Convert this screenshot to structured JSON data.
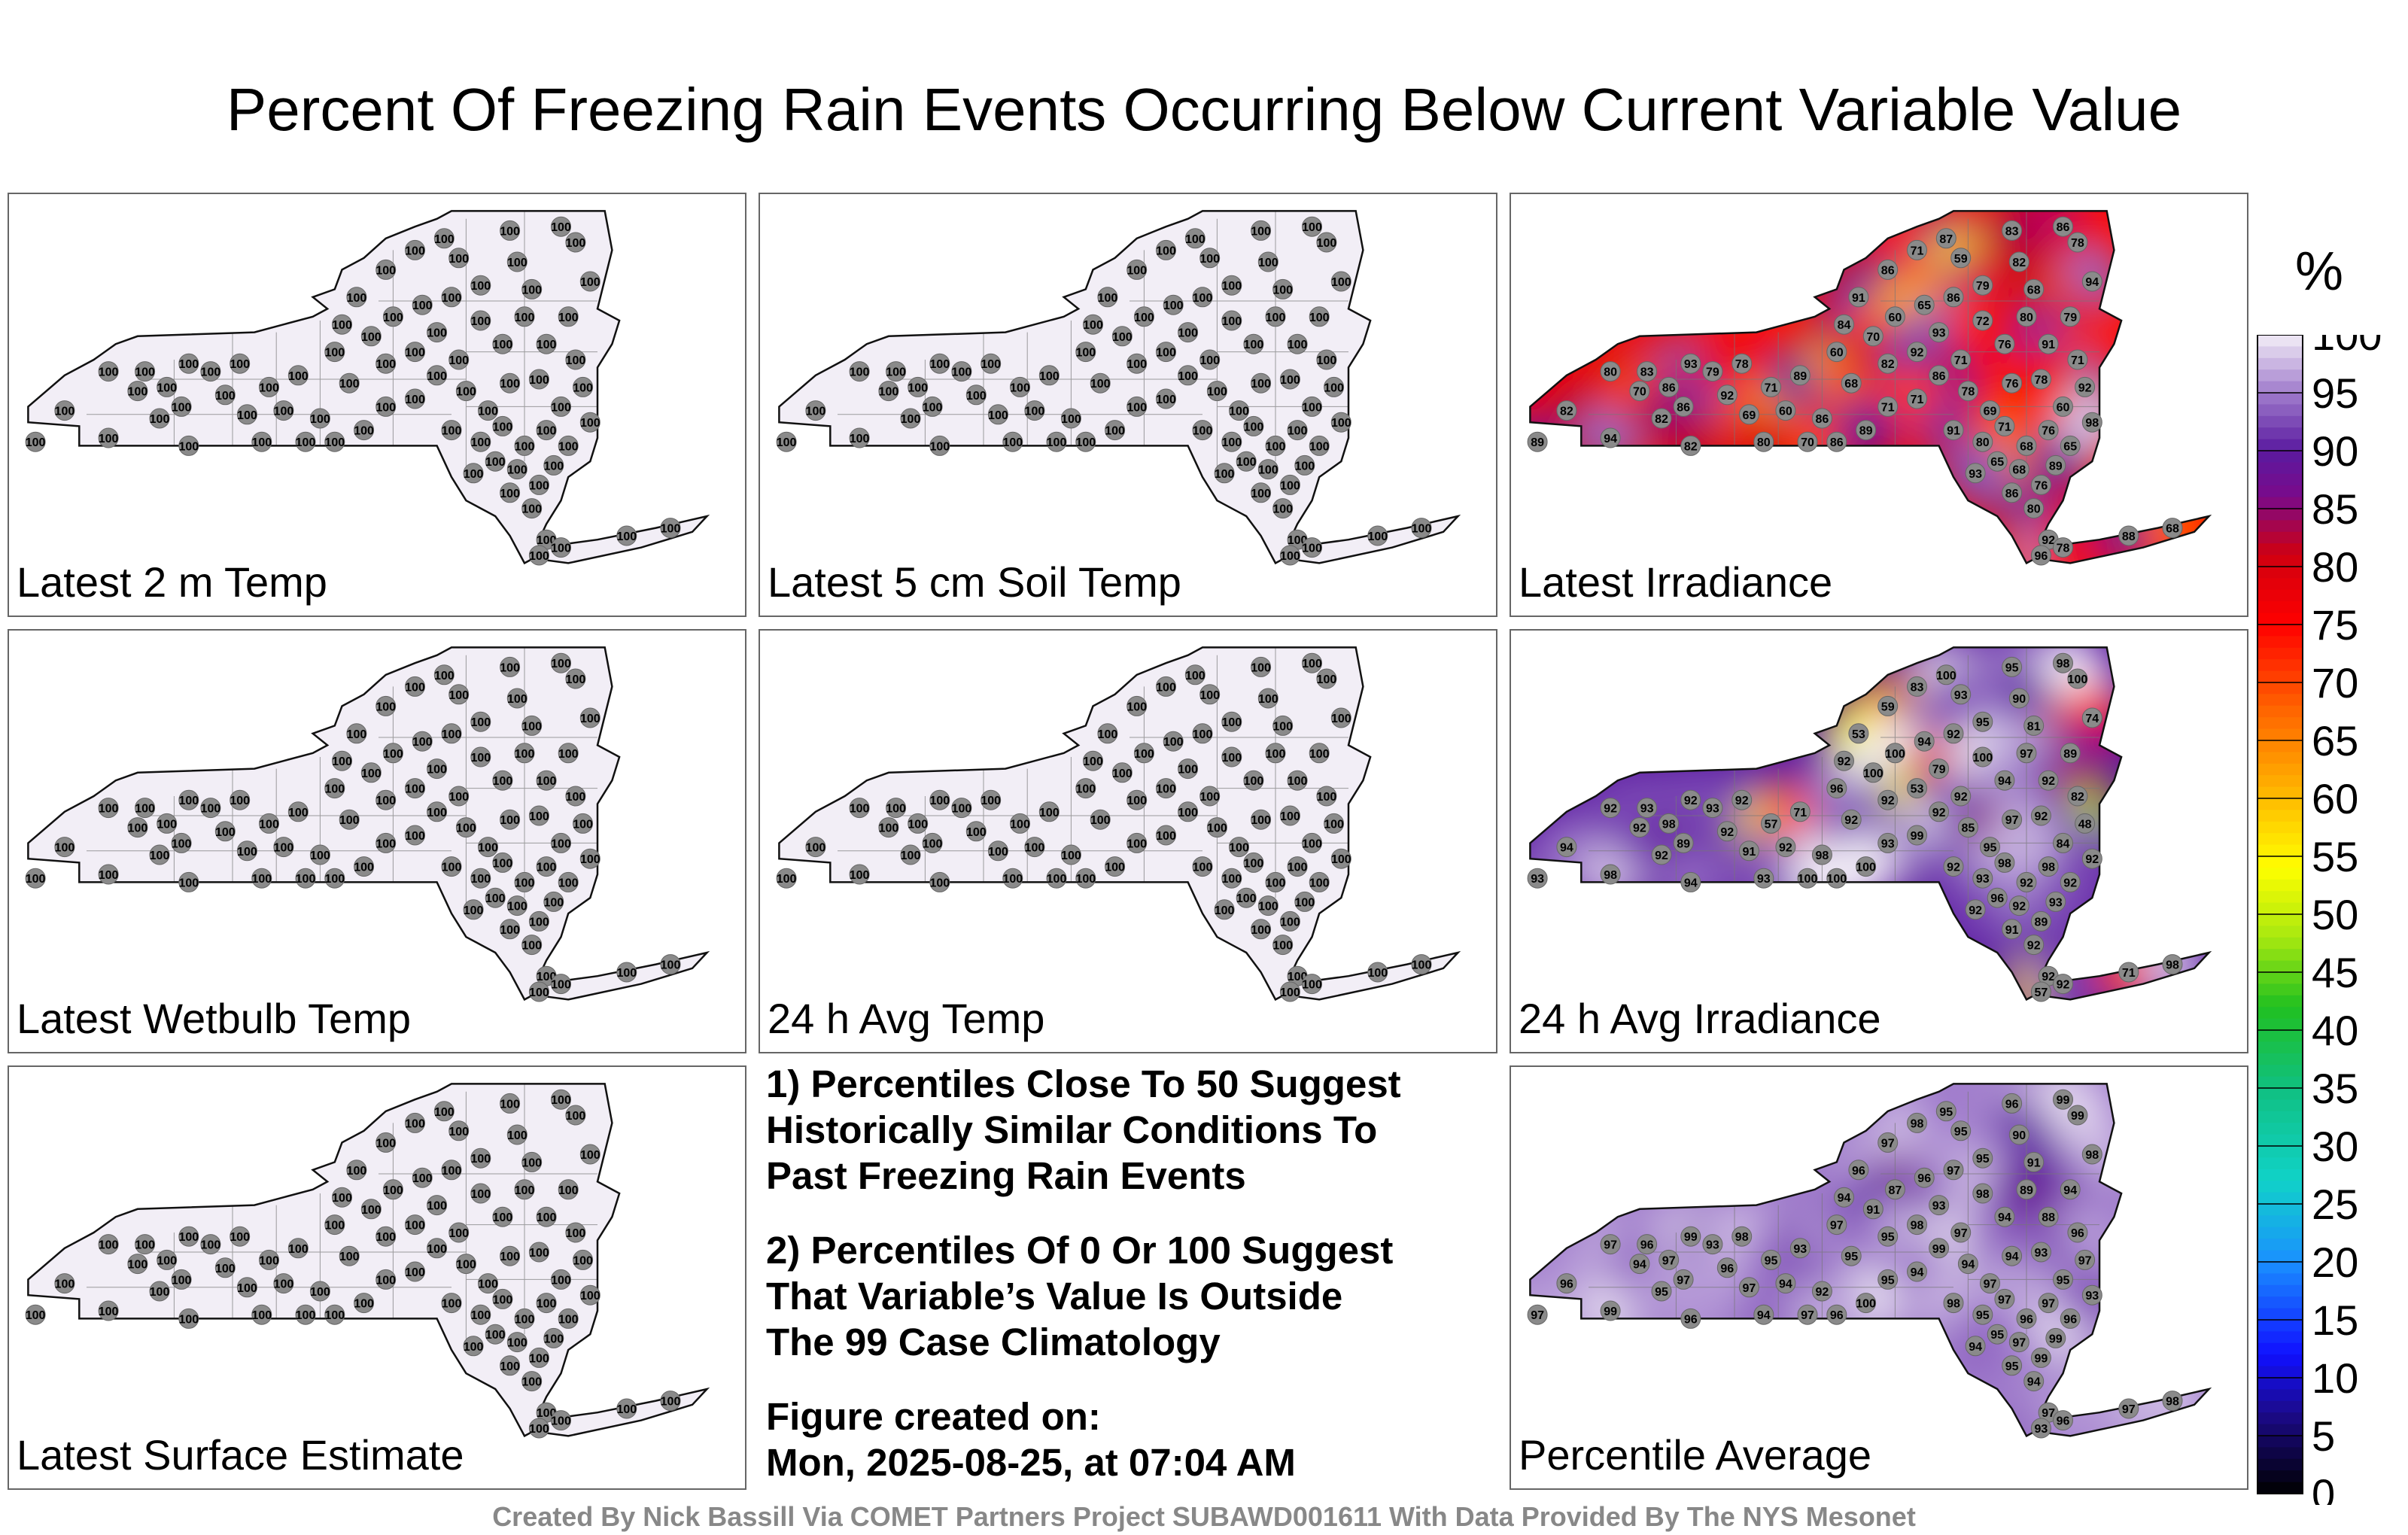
{
  "title": "Percent Of Freezing Rain Events Occurring Below Current Variable Value",
  "colorbar": {
    "unit": "%",
    "ticks": [
      "0",
      "5",
      "10",
      "15",
      "20",
      "25",
      "30",
      "35",
      "40",
      "45",
      "50",
      "55",
      "60",
      "65",
      "70",
      "75",
      "80",
      "85",
      "90",
      "95",
      "100"
    ]
  },
  "panels": [
    {
      "label": "Latest 2 m Temp",
      "mode": "flat",
      "fill": "#f2eef6"
    },
    {
      "label": "Latest 5 cm Soil Temp",
      "mode": "flat",
      "fill": "#f2eef6"
    },
    {
      "label": "Latest Irradiance",
      "mode": "field",
      "center": 74,
      "spread": 14
    },
    {
      "label": "Latest Wetbulb Temp",
      "mode": "flat",
      "fill": "#f2eef6"
    },
    {
      "label": "24 h Avg Temp",
      "mode": "flat",
      "fill": "#f2eef6"
    },
    {
      "label": "24 h Avg Irradiance",
      "mode": "field",
      "center": 90,
      "spread": 10
    },
    {
      "label": "Latest Surface Estimate",
      "mode": "flat",
      "fill": "#f2eef6"
    },
    {
      "label": "Percentile Average",
      "mode": "field",
      "center": 95,
      "spread": 3
    }
  ],
  "station_labels": {
    "flat": [
      "100"
    ],
    "irradiance": [
      "89",
      "82",
      "80",
      "83",
      "86",
      "93",
      "94",
      "70",
      "82",
      "86",
      "79",
      "92",
      "69",
      "78",
      "71",
      "60",
      "89",
      "86",
      "60",
      "68",
      "84",
      "91",
      "86",
      "71",
      "87",
      "59",
      "83",
      "86",
      "78",
      "94",
      "79",
      "68",
      "82",
      "79",
      "86",
      "65",
      "60",
      "70",
      "82",
      "92",
      "93",
      "71",
      "72",
      "76",
      "80",
      "91",
      "71",
      "92",
      "60",
      "78",
      "76",
      "69",
      "78",
      "86",
      "71",
      "71",
      "89",
      "86",
      "70",
      "80",
      "82",
      "91",
      "80",
      "71",
      "68",
      "76",
      "65",
      "68",
      "76",
      "89",
      "80",
      "86",
      "92",
      "96",
      "78",
      "88",
      "68",
      "65",
      "93",
      "98",
      "69"
    ],
    "avg_irradiance": [
      "93",
      "94",
      "92",
      "93",
      "98",
      "92",
      "98",
      "92",
      "92",
      "89",
      "93",
      "92",
      "91",
      "92",
      "57",
      "92",
      "71",
      "98",
      "96",
      "92",
      "92",
      "53",
      "59",
      "83",
      "100",
      "93",
      "95",
      "98",
      "100",
      "74",
      "89",
      "81",
      "90",
      "95",
      "92",
      "94",
      "100",
      "100",
      "92",
      "53",
      "79",
      "92",
      "100",
      "94",
      "97",
      "92",
      "82",
      "48",
      "84",
      "92",
      "97",
      "95",
      "85",
      "92",
      "99",
      "93",
      "100",
      "100",
      "100"
    ],
    "average": [
      "97",
      "96",
      "97",
      "96",
      "97",
      "99",
      "99",
      "94",
      "95",
      "97",
      "93",
      "96",
      "97",
      "98",
      "95",
      "94",
      "93",
      "92",
      "97",
      "95",
      "94",
      "96",
      "97",
      "98",
      "95",
      "95",
      "96",
      "99",
      "99",
      "98",
      "94",
      "91",
      "90",
      "95",
      "97",
      "96",
      "87",
      "91",
      "95",
      "98",
      "93",
      "97",
      "98",
      "94",
      "89",
      "88",
      "96",
      "97",
      "95",
      "93",
      "94",
      "97",
      "94",
      "99",
      "94",
      "95",
      "100",
      "96",
      "97",
      "94",
      "96",
      "98",
      "95"
    ]
  },
  "notes": {
    "note1": [
      "1) Percentiles Close To 50 Suggest",
      "Historically Similar Conditions To",
      "Past Freezing Rain Events"
    ],
    "note2": [
      "2) Percentiles Of 0 Or 100 Suggest",
      "That Variable’s Value Is Outside",
      "The 99 Case Climatology"
    ],
    "created_label": "Figure created on:",
    "created_value": "Mon, 2025-08-25, at 07:04 AM"
  },
  "credit": "Created By Nick Bassill Via COMET Partners Project SUBAWD001611 With Data Provided By The NYS Mesonet"
}
